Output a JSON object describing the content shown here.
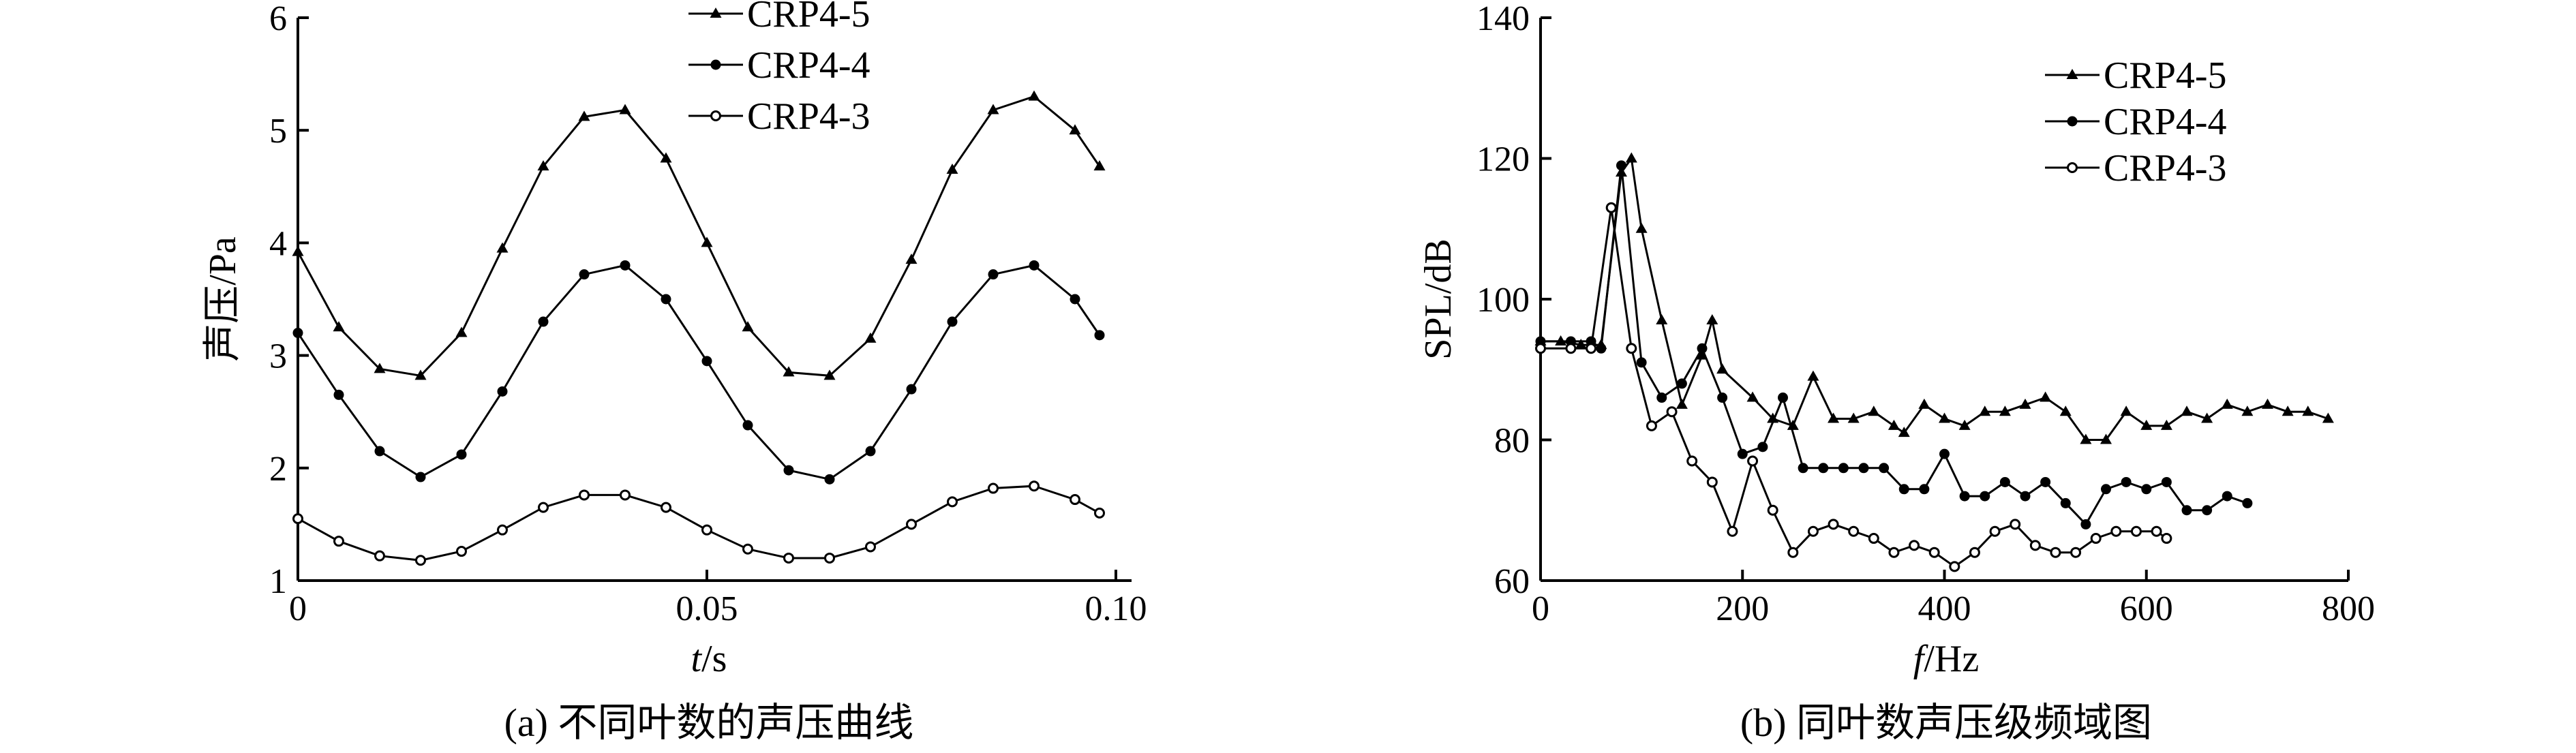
{
  "chart_data": [
    {
      "type": "line",
      "panel": "a",
      "caption": "(a) 不同叶数的声压曲线",
      "xlabel_italic": "t",
      "xlabel_unit": "/s",
      "ylabel": "声压/Pa",
      "xlim": [
        0,
        0.1
      ],
      "ylim": [
        1,
        6
      ],
      "xticks": [
        0,
        0.05,
        0.1
      ],
      "xtick_labels": [
        "0",
        "0.05",
        "0.10"
      ],
      "yticks": [
        1,
        2,
        3,
        4,
        5,
        6
      ],
      "ytick_labels": [
        "1",
        "2",
        "3",
        "4",
        "5",
        "6"
      ],
      "grid": false,
      "legend_position": "top-right",
      "series": [
        {
          "name": "CRP4-5",
          "marker": "triangle",
          "x": [
            0,
            0.005,
            0.01,
            0.015,
            0.02,
            0.025,
            0.03,
            0.035,
            0.04,
            0.045,
            0.05,
            0.055,
            0.06,
            0.065,
            0.07,
            0.075,
            0.08,
            0.085,
            0.09,
            0.095,
            0.098
          ],
          "y": [
            3.92,
            3.25,
            2.88,
            2.82,
            3.2,
            3.95,
            4.68,
            5.12,
            5.18,
            4.75,
            4.0,
            3.25,
            2.85,
            2.82,
            3.15,
            3.85,
            4.65,
            5.18,
            5.3,
            5.0,
            4.68
          ]
        },
        {
          "name": "CRP4-4",
          "marker": "filled-circle",
          "x": [
            0,
            0.005,
            0.01,
            0.015,
            0.02,
            0.025,
            0.03,
            0.035,
            0.04,
            0.045,
            0.05,
            0.055,
            0.06,
            0.065,
            0.07,
            0.075,
            0.08,
            0.085,
            0.09,
            0.095,
            0.098
          ],
          "y": [
            3.2,
            2.65,
            2.15,
            1.92,
            2.12,
            2.68,
            3.3,
            3.72,
            3.8,
            3.5,
            2.95,
            2.38,
            1.98,
            1.9,
            2.15,
            2.7,
            3.3,
            3.72,
            3.8,
            3.5,
            3.18
          ]
        },
        {
          "name": "CRP4-3",
          "marker": "open-circle",
          "x": [
            0,
            0.005,
            0.01,
            0.015,
            0.02,
            0.025,
            0.03,
            0.035,
            0.04,
            0.045,
            0.05,
            0.055,
            0.06,
            0.065,
            0.07,
            0.075,
            0.08,
            0.085,
            0.09,
            0.095,
            0.098
          ],
          "y": [
            1.55,
            1.35,
            1.22,
            1.18,
            1.26,
            1.45,
            1.65,
            1.76,
            1.76,
            1.65,
            1.45,
            1.28,
            1.2,
            1.2,
            1.3,
            1.5,
            1.7,
            1.82,
            1.84,
            1.72,
            1.6
          ]
        }
      ]
    },
    {
      "type": "line",
      "panel": "b",
      "caption": "(b) 同叶数声压级频域图",
      "xlabel_italic": "f",
      "xlabel_unit": "/Hz",
      "ylabel": "SPL/dB",
      "xlim": [
        0,
        800
      ],
      "ylim": [
        60,
        140
      ],
      "xticks": [
        0,
        200,
        400,
        600,
        800
      ],
      "xtick_labels": [
        "0",
        "200",
        "400",
        "600",
        "800"
      ],
      "yticks": [
        60,
        80,
        100,
        120,
        140
      ],
      "ytick_labels": [
        "60",
        "80",
        "100",
        "120",
        "140"
      ],
      "grid": false,
      "legend_position": "top-right",
      "series": [
        {
          "name": "CRP4-5",
          "marker": "triangle",
          "x": [
            0,
            20,
            40,
            60,
            80,
            90,
            100,
            120,
            140,
            160,
            170,
            180,
            210,
            230,
            250,
            270,
            290,
            310,
            330,
            350,
            360,
            380,
            400,
            420,
            440,
            460,
            480,
            500,
            520,
            540,
            560,
            580,
            600,
            620,
            640,
            660,
            680,
            700,
            720,
            740,
            760,
            780
          ],
          "y": [
            94,
            94,
            93.5,
            93.5,
            118,
            120,
            110,
            97,
            85,
            92,
            97,
            90,
            86,
            83,
            82,
            89,
            83,
            83,
            84,
            82,
            81,
            85,
            83,
            82,
            84,
            84,
            85,
            86,
            84,
            80,
            80,
            84,
            82,
            82,
            84,
            83,
            85,
            84,
            85,
            84,
            84,
            83
          ]
        },
        {
          "name": "CRP4-4",
          "marker": "filled-circle",
          "x": [
            0,
            30,
            50,
            60,
            80,
            100,
            120,
            140,
            160,
            180,
            200,
            220,
            240,
            260,
            280,
            300,
            320,
            340,
            360,
            380,
            400,
            420,
            440,
            460,
            480,
            500,
            520,
            540,
            560,
            580,
            600,
            620,
            640,
            660,
            680,
            700
          ],
          "y": [
            94,
            94,
            94,
            93,
            119,
            91,
            86,
            88,
            93,
            86,
            78,
            79,
            86,
            76,
            76,
            76,
            76,
            76,
            73,
            73,
            78,
            72,
            72,
            74,
            72,
            74,
            71,
            68,
            73,
            74,
            73,
            74,
            70,
            70,
            72,
            71
          ]
        },
        {
          "name": "CRP4-3",
          "marker": "open-circle",
          "x": [
            0,
            30,
            50,
            70,
            90,
            110,
            130,
            150,
            170,
            190,
            210,
            230,
            250,
            270,
            290,
            310,
            330,
            350,
            370,
            390,
            410,
            430,
            450,
            470,
            490,
            510,
            530,
            550,
            570,
            590,
            610,
            620
          ],
          "y": [
            93,
            93,
            93,
            113,
            93,
            82,
            84,
            77,
            74,
            67,
            77,
            70,
            64,
            67,
            68,
            67,
            66,
            64,
            65,
            64,
            62,
            64,
            67,
            68,
            65,
            64,
            64,
            66,
            67,
            67,
            67,
            66
          ]
        }
      ]
    }
  ]
}
